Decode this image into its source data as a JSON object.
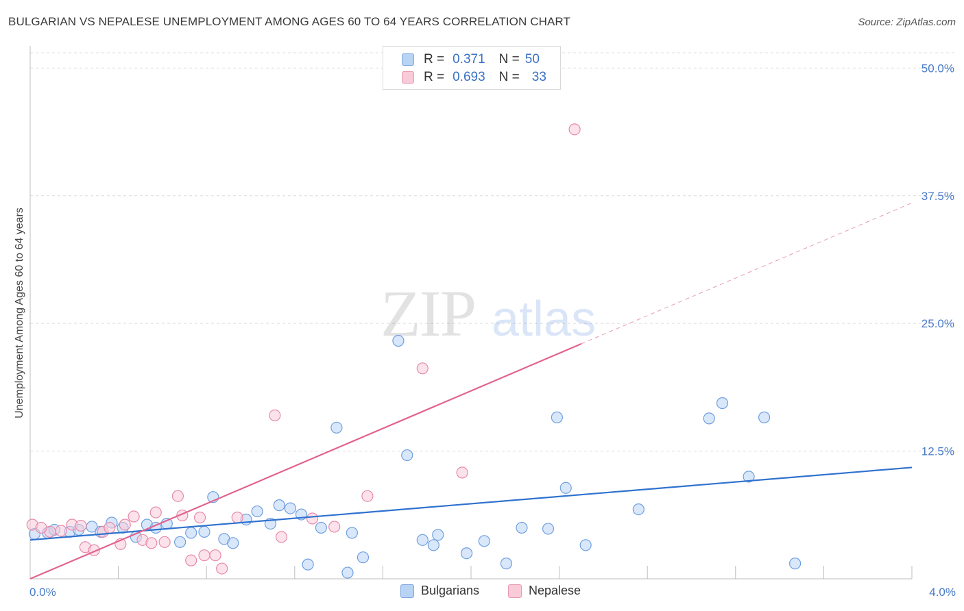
{
  "header": {
    "title": "BULGARIAN VS NEPALESE UNEMPLOYMENT AMONG AGES 60 TO 64 YEARS CORRELATION CHART",
    "source": "Source: ZipAtlas.com"
  },
  "watermark": {
    "zip": "ZIP",
    "atlas": "atlas"
  },
  "legend": {
    "rows": [
      {
        "r_label": "R =",
        "r_value": "0.371",
        "n_label": "N =",
        "n_value": "50",
        "color": "#a9c7f0",
        "stroke": "#7fa6df"
      },
      {
        "r_label": "R =",
        "r_value": "0.693",
        "n_label": "N =",
        "n_value": "33",
        "color": "#f7bfd0",
        "stroke": "#e79ab2"
      }
    ]
  },
  "bottom_legend": [
    {
      "label": "Bulgarians",
      "color": "#b9d3f5",
      "stroke": "#7fa6df"
    },
    {
      "label": "Nepalese",
      "color": "#f9cad8",
      "stroke": "#e79ab2"
    }
  ],
  "chart_data": {
    "type": "scatter",
    "ylabel": "Unemployment Among Ages 60 to 64 years",
    "xlabel": "",
    "xlim": [
      0,
      4.0
    ],
    "ylim": [
      0,
      51.5
    ],
    "x_tick_labels": [
      "0.0%",
      "4.0%"
    ],
    "y_ticks": [
      12.5,
      25.0,
      37.5,
      50.0
    ],
    "y_tick_labels": [
      "12.5%",
      "25.0%",
      "37.5%",
      "50.0%"
    ],
    "grid": "horizontal dashed",
    "legend_placement": "top-center",
    "series": [
      {
        "name": "Bulgarians",
        "color": "#6f9fe0",
        "fill": "#b9d3f5",
        "points": [
          [
            0.02,
            4.4
          ],
          [
            0.08,
            4.5
          ],
          [
            0.11,
            4.8
          ],
          [
            0.18,
            4.6
          ],
          [
            0.22,
            4.8
          ],
          [
            0.28,
            5.1
          ],
          [
            0.32,
            4.6
          ],
          [
            0.37,
            5.5
          ],
          [
            0.42,
            5.0
          ],
          [
            0.48,
            4.1
          ],
          [
            0.53,
            5.3
          ],
          [
            0.57,
            5.0
          ],
          [
            0.62,
            5.4
          ],
          [
            0.68,
            3.6
          ],
          [
            0.73,
            4.5
          ],
          [
            0.79,
            4.6
          ],
          [
            0.83,
            8.0
          ],
          [
            0.88,
            3.9
          ],
          [
            0.92,
            3.5
          ],
          [
            0.98,
            5.8
          ],
          [
            1.03,
            6.6
          ],
          [
            1.09,
            5.4
          ],
          [
            1.13,
            7.2
          ],
          [
            1.18,
            6.9
          ],
          [
            1.23,
            6.3
          ],
          [
            1.26,
            1.4
          ],
          [
            1.32,
            5.0
          ],
          [
            1.39,
            14.8
          ],
          [
            1.44,
            0.6
          ],
          [
            1.46,
            4.5
          ],
          [
            1.51,
            2.1
          ],
          [
            1.67,
            23.3
          ],
          [
            1.71,
            12.1
          ],
          [
            1.78,
            3.8
          ],
          [
            1.83,
            3.3
          ],
          [
            1.85,
            4.3
          ],
          [
            1.98,
            2.5
          ],
          [
            2.06,
            3.7
          ],
          [
            2.16,
            1.5
          ],
          [
            2.23,
            5.0
          ],
          [
            2.35,
            4.9
          ],
          [
            2.39,
            15.8
          ],
          [
            2.43,
            8.9
          ],
          [
            2.52,
            3.3
          ],
          [
            2.76,
            6.8
          ],
          [
            3.08,
            15.7
          ],
          [
            3.14,
            17.2
          ],
          [
            3.26,
            10.0
          ],
          [
            3.33,
            15.8
          ],
          [
            3.47,
            1.5
          ]
        ]
      },
      {
        "name": "Nepalese",
        "color": "#e68aa8",
        "fill": "#f9cad8",
        "points": [
          [
            0.01,
            5.3
          ],
          [
            0.09,
            4.6
          ],
          [
            0.14,
            4.7
          ],
          [
            0.19,
            5.3
          ],
          [
            0.23,
            5.2
          ],
          [
            0.25,
            3.1
          ],
          [
            0.29,
            2.8
          ],
          [
            0.33,
            4.6
          ],
          [
            0.36,
            5.0
          ],
          [
            0.41,
            3.4
          ],
          [
            0.43,
            5.3
          ],
          [
            0.47,
            6.1
          ],
          [
            0.51,
            3.8
          ],
          [
            0.55,
            3.5
          ],
          [
            0.57,
            6.5
          ],
          [
            0.61,
            3.6
          ],
          [
            0.67,
            8.1
          ],
          [
            0.69,
            6.2
          ],
          [
            0.73,
            1.8
          ],
          [
            0.77,
            6.0
          ],
          [
            0.79,
            2.3
          ],
          [
            0.84,
            2.3
          ],
          [
            0.87,
            1.0
          ],
          [
            0.94,
            6.0
          ],
          [
            1.11,
            16.0
          ],
          [
            1.14,
            4.1
          ],
          [
            1.28,
            5.9
          ],
          [
            1.38,
            5.1
          ],
          [
            1.53,
            8.1
          ],
          [
            1.78,
            20.6
          ],
          [
            1.96,
            10.4
          ],
          [
            2.47,
            44.0
          ],
          [
            0.05,
            5.0
          ]
        ]
      }
    ],
    "trend_lines": [
      {
        "series": "Bulgarians",
        "color": "#2f72cf",
        "from": [
          0.0,
          3.8
        ],
        "to": [
          4.0,
          10.9
        ],
        "style": "solid"
      },
      {
        "series": "Nepalese",
        "color": "#e2638d",
        "from": [
          0.0,
          0.0
        ],
        "to": [
          2.5,
          23.0
        ],
        "style": "solid"
      },
      {
        "series": "Nepalese",
        "color": "#e79ab2",
        "from": [
          2.5,
          23.0
        ],
        "to": [
          4.0,
          36.8
        ],
        "style": "dashed"
      }
    ]
  }
}
